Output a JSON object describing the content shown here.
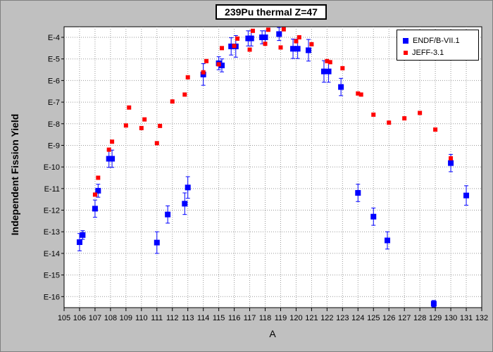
{
  "chart_data": {
    "type": "scatter",
    "title": "239Pu thermal Z=47",
    "xlabel": "A",
    "ylabel": "Independent Fission Yield",
    "xlim": [
      105,
      132
    ],
    "ylim_log10": [
      -17,
      -4
    ],
    "y_scale": "log",
    "grid": true,
    "legend_position": "top-right",
    "x_ticks": [
      105,
      106,
      107,
      108,
      109,
      110,
      111,
      112,
      113,
      114,
      115,
      116,
      117,
      118,
      119,
      120,
      121,
      122,
      123,
      124,
      125,
      126,
      127,
      128,
      129,
      130,
      131,
      132
    ],
    "y_tick_labels": [
      "E-4",
      "E-5",
      "E-6",
      "E-7",
      "E-8",
      "E-9",
      "E-10",
      "E-11",
      "E-12",
      "E-13",
      "E-14",
      "E-15",
      "E-16"
    ],
    "series": [
      {
        "name": "ENDF/B-VII.1",
        "color": "#0000ff",
        "marker": "square-large",
        "points": [
          [
            106.0,
            -13.48,
            0.4
          ],
          [
            106.2,
            -13.15,
            0.2
          ],
          [
            107.0,
            -11.93,
            0.4
          ],
          [
            107.2,
            -11.1,
            0.3
          ],
          [
            107.9,
            -9.62,
            0.4
          ],
          [
            108.1,
            -9.62,
            0.4
          ],
          [
            111.0,
            -13.5,
            0.5
          ],
          [
            111.7,
            -12.2,
            0.4
          ],
          [
            112.8,
            -11.7,
            0.5
          ],
          [
            113.0,
            -10.95,
            0.5
          ],
          [
            114.0,
            -5.72,
            0.5
          ],
          [
            115.0,
            -5.2,
            0.3
          ],
          [
            115.2,
            -5.3,
            0.3
          ],
          [
            115.8,
            -4.42,
            0.4
          ],
          [
            116.1,
            -4.42,
            0.5
          ],
          [
            116.9,
            -4.05,
            0.35
          ],
          [
            117.1,
            -4.05,
            0.35
          ],
          [
            117.8,
            -4.0,
            0.3
          ],
          [
            118.0,
            -4.0,
            0.3
          ],
          [
            118.9,
            -3.85,
            0.3
          ],
          [
            119.8,
            -4.53,
            0.45
          ],
          [
            120.1,
            -4.53,
            0.45
          ],
          [
            120.8,
            -4.6,
            0.5
          ],
          [
            121.8,
            -5.58,
            0.5
          ],
          [
            122.1,
            -5.58,
            0.5
          ],
          [
            122.9,
            -6.3,
            0.4
          ],
          [
            124.0,
            -11.2,
            0.4
          ],
          [
            125.0,
            -12.3,
            0.4
          ],
          [
            125.9,
            -13.4,
            0.4
          ],
          [
            128.9,
            -16.33,
            0.15
          ],
          [
            130.0,
            -9.82,
            0.4
          ],
          [
            131.0,
            -11.32,
            0.45
          ]
        ]
      },
      {
        "name": "JEFF-3.1",
        "color": "#ff0000",
        "marker": "square-small",
        "points": [
          [
            107.0,
            -11.28
          ],
          [
            107.2,
            -10.5
          ],
          [
            107.9,
            -9.2
          ],
          [
            108.1,
            -8.83
          ],
          [
            109.0,
            -8.08
          ],
          [
            109.2,
            -7.25
          ],
          [
            110.0,
            -8.2
          ],
          [
            110.2,
            -7.8
          ],
          [
            111.0,
            -8.9
          ],
          [
            111.2,
            -8.1
          ],
          [
            112.0,
            -6.97
          ],
          [
            112.8,
            -6.65
          ],
          [
            113.0,
            -5.85
          ],
          [
            114.0,
            -5.62
          ],
          [
            114.2,
            -5.1
          ],
          [
            115.0,
            -5.25
          ],
          [
            115.2,
            -4.5
          ],
          [
            116.0,
            -4.4
          ],
          [
            116.2,
            -4.06
          ],
          [
            117.0,
            -4.57
          ],
          [
            117.2,
            -3.7
          ],
          [
            118.0,
            -4.3
          ],
          [
            118.2,
            -3.65
          ],
          [
            119.0,
            -4.47
          ],
          [
            119.2,
            -3.63
          ],
          [
            120.0,
            -4.18
          ],
          [
            120.2,
            -4.0
          ],
          [
            121.0,
            -4.32
          ],
          [
            122.0,
            -5.1
          ],
          [
            122.2,
            -5.15
          ],
          [
            123.0,
            -5.43
          ],
          [
            124.0,
            -6.6
          ],
          [
            124.2,
            -6.65
          ],
          [
            125.0,
            -7.58
          ],
          [
            126.0,
            -7.95
          ],
          [
            127.0,
            -7.75
          ],
          [
            128.0,
            -7.5
          ],
          [
            129.0,
            -8.27
          ],
          [
            130.0,
            -9.6
          ]
        ]
      }
    ]
  }
}
